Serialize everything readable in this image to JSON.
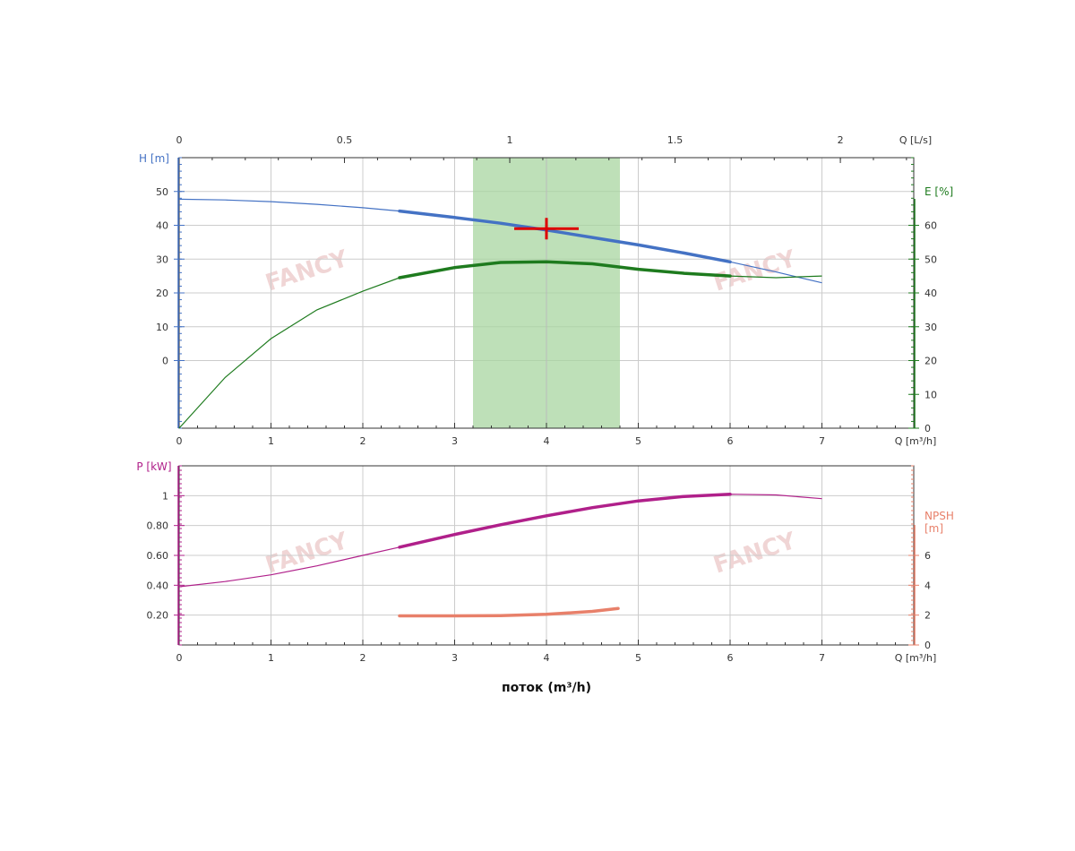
{
  "watermark": "FANCY",
  "xlabel_bottom": "поток (m³/h)",
  "chart_data": [
    {
      "type": "line",
      "name": "head-efficiency",
      "x_axis": {
        "label": "Q [m³/h]",
        "range": [
          0,
          8
        ],
        "ticks": [
          0,
          1,
          2,
          3,
          4,
          5,
          6,
          7
        ]
      },
      "x_top_axis": {
        "label": "Q [L/s]",
        "range": [
          0,
          2.222
        ],
        "ticks": [
          0,
          0.5,
          1,
          1.5,
          2
        ],
        "tick_labels": [
          "0",
          "0.5",
          "1",
          "1.5",
          "2"
        ]
      },
      "y_left": {
        "label": "H [m]",
        "range": [
          -20,
          60
        ],
        "ticks": [
          0,
          10,
          20,
          30,
          40,
          50
        ],
        "color": "#4472c4"
      },
      "y_right": {
        "label": "E [%]",
        "range": [
          0,
          80
        ],
        "ticks": [
          0,
          10,
          20,
          30,
          40,
          50,
          60
        ],
        "color": "#1e7b1e"
      },
      "grid": true,
      "operating_range": {
        "x": [
          3.2,
          4.8
        ],
        "color": "#a8d5a0"
      },
      "duty_point": {
        "x": 4.0,
        "y": 39,
        "color": "#dd0000"
      },
      "series": [
        {
          "axis": "left",
          "color": "#4472c4",
          "x": [
            0,
            0.5,
            1,
            1.5,
            2,
            2.4,
            3,
            3.5,
            4,
            4.5,
            5,
            5.5,
            6,
            6.5,
            7
          ],
          "values": [
            47.7,
            47.5,
            47,
            46.2,
            45.2,
            44.2,
            42.3,
            40.6,
            38.6,
            36.4,
            34.2,
            31.8,
            29.2,
            26.2,
            23
          ]
        },
        {
          "axis": "right",
          "color": "#1e7b1e",
          "x": [
            0,
            0.5,
            1,
            1.5,
            2,
            2.4,
            3,
            3.5,
            4,
            4.5,
            5,
            5.5,
            6,
            6.5,
            7
          ],
          "values": [
            0,
            15,
            26.5,
            35,
            40.5,
            44.5,
            47.5,
            49,
            49.2,
            48.6,
            47,
            45.8,
            45,
            44.5,
            45
          ]
        }
      ],
      "bold_range": [
        2.4,
        6
      ]
    },
    {
      "type": "line",
      "name": "power-npsh",
      "x_axis": {
        "label": "Q [m³/h]",
        "range": [
          0,
          8
        ],
        "ticks": [
          0,
          1,
          2,
          3,
          4,
          5,
          6,
          7
        ]
      },
      "y_left": {
        "label": "P [kW]",
        "range": [
          0.0,
          1.2
        ],
        "ticks": [
          0.2,
          0.4,
          0.6,
          0.8,
          1.0
        ],
        "tick_labels": [
          "0.20",
          "0.40",
          "0.60",
          "0.80",
          "1"
        ],
        "color": "#b0208a"
      },
      "y_right": {
        "label": "NPSH\n[m]",
        "range": [
          0,
          12
        ],
        "ticks": [
          0,
          2,
          4,
          6
        ],
        "color": "#e8806a"
      },
      "grid": true,
      "series": [
        {
          "axis": "left",
          "color": "#b0208a",
          "x": [
            0,
            0.5,
            1,
            1.5,
            2,
            2.4,
            3,
            3.5,
            4,
            4.5,
            5,
            5.5,
            6,
            6.5,
            7
          ],
          "values": [
            0.39,
            0.425,
            0.47,
            0.53,
            0.6,
            0.655,
            0.74,
            0.805,
            0.865,
            0.92,
            0.965,
            0.995,
            1.01,
            1.005,
            0.98
          ],
          "bold_range": [
            2.4,
            6
          ]
        },
        {
          "axis": "right",
          "color": "#e8806a",
          "x": [
            2.4,
            3,
            3.5,
            4,
            4.5,
            4.78
          ],
          "values": [
            1.95,
            1.95,
            1.97,
            2.05,
            2.25,
            2.45
          ],
          "bold_range": [
            2.4,
            4.78
          ]
        }
      ]
    }
  ]
}
